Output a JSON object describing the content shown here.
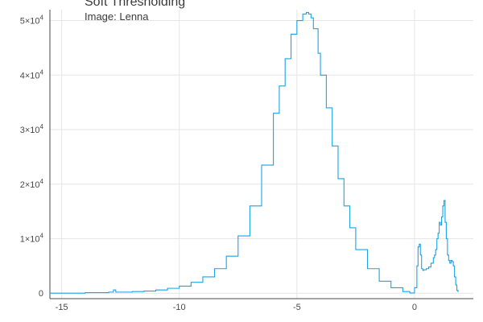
{
  "chart_data": {
    "type": "line",
    "title": "Soft Thresholding",
    "subtitle": "Image: Lenna",
    "xlim": [
      -15.5,
      2.5
    ],
    "ylim": [
      -1000,
      52000
    ],
    "xticks": [
      -15,
      -10,
      -5,
      0
    ],
    "xtick_labels": [
      "-15",
      "-10",
      "-5",
      "0"
    ],
    "yticks": [
      0,
      10000,
      20000,
      30000,
      40000,
      50000
    ],
    "ytick_labels": [
      {
        "mant": "0",
        "exp": ""
      },
      {
        "mant": "1×10",
        "exp": "4"
      },
      {
        "mant": "2×10",
        "exp": "4"
      },
      {
        "mant": "3×10",
        "exp": "4"
      },
      {
        "mant": "4×10",
        "exp": "4"
      },
      {
        "mant": "5×10",
        "exp": "4"
      }
    ],
    "grid": true,
    "color": "#1aa3e8",
    "series": [
      {
        "x": [
          -15.5,
          -14,
          -13,
          -12.8,
          -12.7,
          -12,
          -11.5,
          -11,
          -10.5,
          -10,
          -9.5,
          -9,
          -8.5,
          -8,
          -7.5,
          -7,
          -6.5,
          -6,
          -5.75,
          -5.5,
          -5.25,
          -5,
          -4.75,
          -4.6,
          -4.5,
          -4.4,
          -4.3,
          -4.1,
          -4,
          -3.75,
          -3.5,
          -3.25,
          -3,
          -2.75,
          -2.5,
          -2,
          -1.5,
          -1,
          -0.5,
          -0.2,
          0,
          0.1,
          0.15,
          0.2,
          0.25,
          0.3,
          0.35,
          0.4,
          0.5,
          0.6,
          0.7,
          0.8,
          0.85,
          0.9,
          0.95,
          1.0,
          1.05,
          1.1,
          1.15,
          1.2,
          1.25,
          1.3,
          1.35,
          1.4,
          1.45,
          1.5,
          1.55,
          1.6,
          1.65,
          1.7,
          1.75,
          1.8,
          1.85
        ],
        "y": [
          0,
          100,
          200,
          600,
          200,
          300,
          400,
          600,
          900,
          1300,
          2000,
          3000,
          4500,
          6800,
          10500,
          16000,
          23500,
          33000,
          38000,
          43000,
          47500,
          50000,
          51200,
          51500,
          51200,
          50500,
          48500,
          44000,
          40000,
          34000,
          27000,
          21000,
          16000,
          12000,
          8000,
          4500,
          2200,
          1000,
          300,
          50,
          1000,
          5000,
          8500,
          9000,
          7000,
          4500,
          4200,
          4300,
          4500,
          4800,
          5500,
          6500,
          7000,
          8000,
          10000,
          11000,
          13000,
          12500,
          14000,
          16000,
          17000,
          13000,
          10000,
          7000,
          6000,
          5500,
          6000,
          5800,
          5000,
          3000,
          1500,
          500,
          200
        ]
      }
    ]
  }
}
